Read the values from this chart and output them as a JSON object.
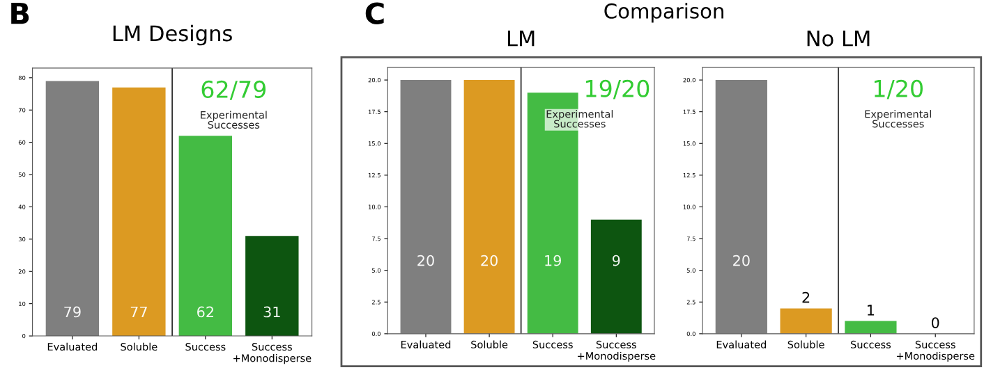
{
  "chart_data": [
    {
      "type": "bar",
      "title": "LM Designs",
      "categories": [
        "Evaluated",
        "Soluble",
        "Success",
        "Success\n+Monodisperse"
      ],
      "values": [
        79,
        77,
        62,
        31
      ],
      "colors": [
        "#7f7f7f",
        "#dc9a22",
        "#44bb44",
        "#0d5510"
      ],
      "ylim": [
        0,
        83
      ],
      "yticks": [
        0,
        10,
        20,
        30,
        40,
        50,
        60,
        70,
        80
      ],
      "data_labels": true,
      "legend": false,
      "grid": false,
      "annotations": [
        "62/79",
        "Experimental\nSuccesses",
        "B"
      ]
    },
    {
      "type": "bar",
      "title": "LM",
      "categories": [
        "Evaluated",
        "Soluble",
        "Success",
        "Success\n+Monodisperse"
      ],
      "values": [
        20,
        20,
        19,
        9
      ],
      "colors": [
        "#7f7f7f",
        "#dc9a22",
        "#44bb44",
        "#0d5510"
      ],
      "ylim": [
        0,
        21
      ],
      "yticks": [
        {
          "value": 0,
          "label": "0.0"
        },
        2.5,
        {
          "value": 5,
          "label": "5.0"
        },
        7.5,
        {
          "value": 10,
          "label": "10.0"
        },
        12.5,
        {
          "value": 15,
          "label": "15.0"
        },
        17.5,
        {
          "value": 20,
          "label": "20.0"
        }
      ],
      "data_labels": true,
      "legend": false,
      "grid": false,
      "annotations": [
        "19/20",
        "Experimental\nSuccesses",
        "C",
        "Comparison"
      ]
    },
    {
      "type": "bar",
      "title": "No LM",
      "categories": [
        "Evaluated",
        "Soluble",
        "Success",
        "Success\n+Monodisperse"
      ],
      "values": [
        20,
        2,
        1,
        0
      ],
      "colors": [
        "#7f7f7f",
        "#dc9a22",
        "#44bb44",
        "#0d5510"
      ],
      "ylim": [
        0,
        21
      ],
      "yticks": [
        {
          "value": 0,
          "label": "0.0"
        },
        2.5,
        {
          "value": 5,
          "label": "5.0"
        },
        7.5,
        {
          "value": 10,
          "label": "10.0"
        },
        12.5,
        {
          "value": 15,
          "label": "15.0"
        },
        17.5,
        {
          "value": 20,
          "label": "20.0"
        }
      ],
      "data_labels": true,
      "legend": false,
      "grid": false,
      "annotations": [
        "1/20",
        "Experimental\nSuccesses"
      ]
    }
  ]
}
